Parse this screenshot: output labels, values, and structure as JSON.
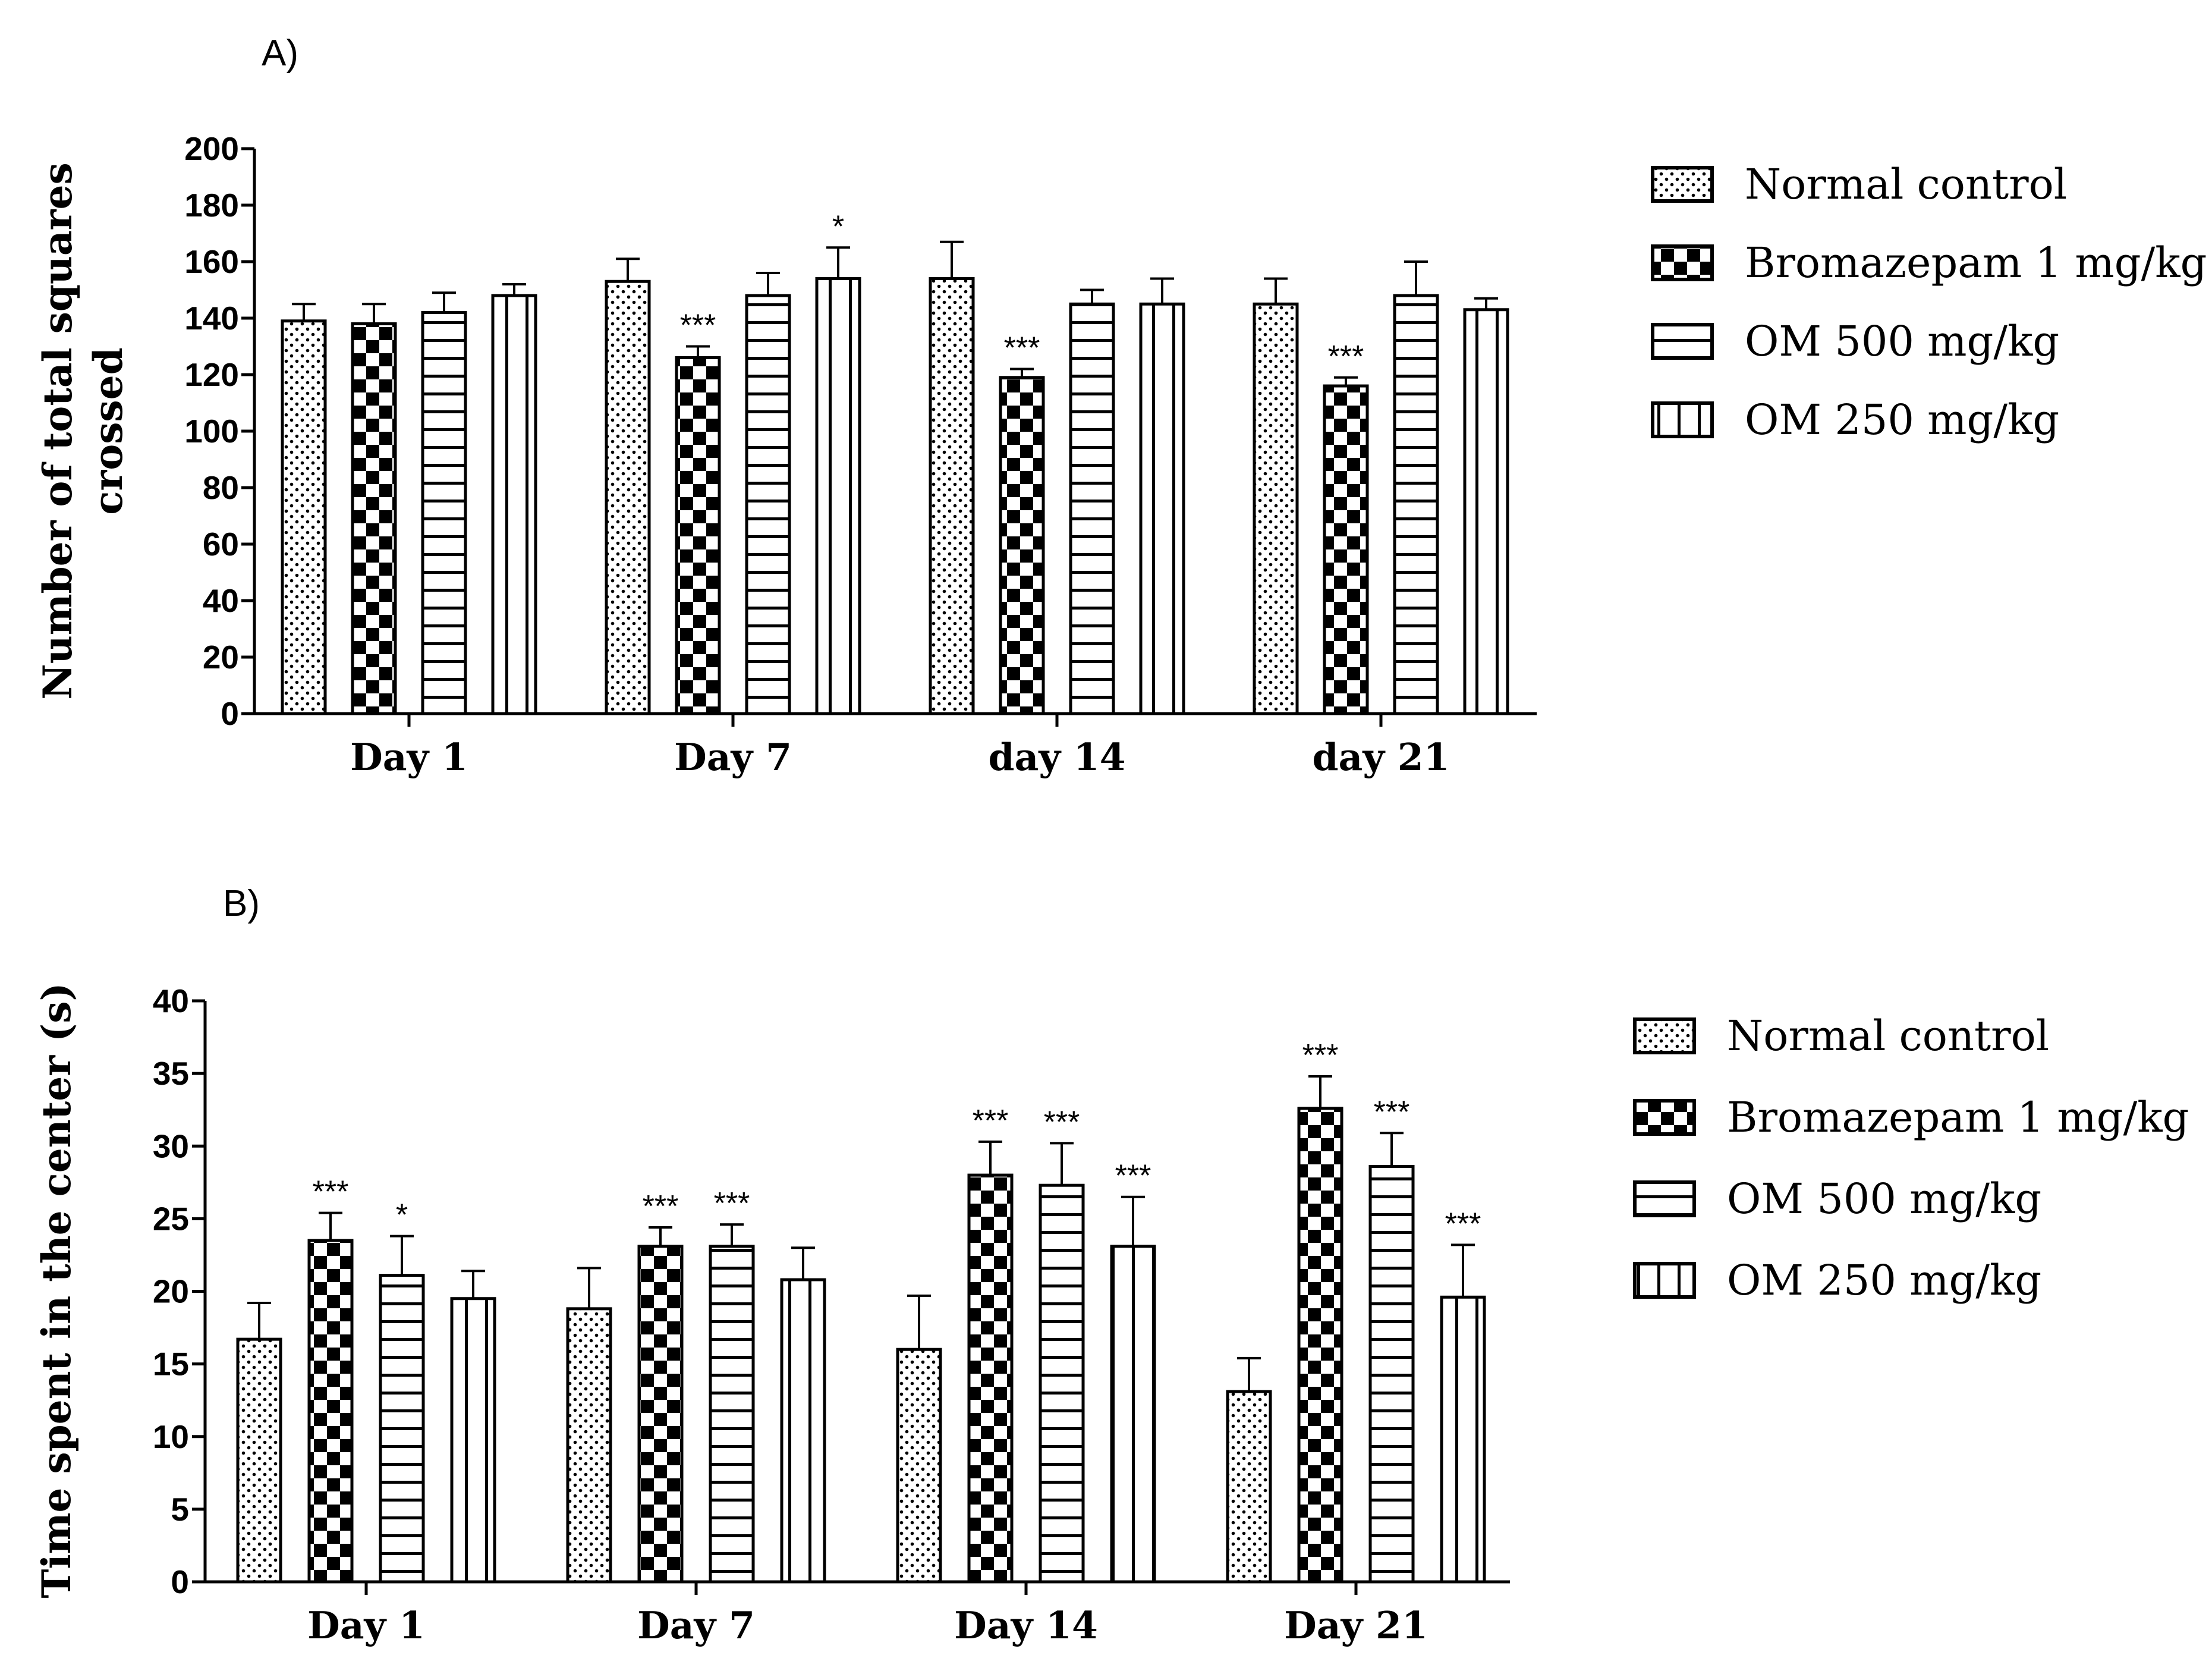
{
  "chart_data": [
    {
      "type": "bar",
      "panel_label": "A)",
      "title": "",
      "xlabel": "",
      "ylabel_lines": [
        "Number of total squares",
        "crossed"
      ],
      "ylim": [
        0,
        200
      ],
      "yticks": [
        0,
        20,
        40,
        60,
        80,
        100,
        120,
        140,
        160,
        180,
        200
      ],
      "grid": false,
      "legend_position": "right",
      "categories": [
        "Day 1",
        "Day 7",
        "day 14",
        "day 21"
      ],
      "series": [
        {
          "name": "Normal control",
          "pattern": "dots",
          "values": [
            139,
            153,
            154,
            145
          ],
          "errors": [
            6,
            8,
            13,
            9
          ],
          "sig": [
            "",
            "",
            "",
            ""
          ]
        },
        {
          "name": "Bromazepam 1 mg/kg",
          "pattern": "checker",
          "values": [
            138,
            126,
            119,
            116
          ],
          "errors": [
            7,
            4,
            3,
            3
          ],
          "sig": [
            "",
            "***",
            "***",
            "***"
          ]
        },
        {
          "name": "OM 500 mg/kg",
          "pattern": "hstripes",
          "values": [
            142,
            148,
            145,
            148
          ],
          "errors": [
            7,
            8,
            5,
            12
          ],
          "sig": [
            "",
            "",
            "",
            ""
          ]
        },
        {
          "name": "OM 250 mg/kg",
          "pattern": "vstripes",
          "values": [
            148,
            154,
            145,
            143
          ],
          "errors": [
            4,
            11,
            9,
            4
          ],
          "sig": [
            "",
            "*",
            "",
            ""
          ]
        }
      ]
    },
    {
      "type": "bar",
      "panel_label": "B)",
      "title": "",
      "xlabel": "",
      "ylabel_lines": [
        "Time spent in the center (s)"
      ],
      "ylim": [
        0,
        40
      ],
      "yticks": [
        0,
        5,
        10,
        15,
        20,
        25,
        30,
        35,
        40
      ],
      "grid": false,
      "legend_position": "right",
      "categories": [
        "Day 1",
        "Day 7",
        "Day 14",
        "Day 21"
      ],
      "series": [
        {
          "name": "Normal control",
          "pattern": "dots",
          "values": [
            16.7,
            18.8,
            16.0,
            13.1
          ],
          "errors": [
            2.5,
            2.8,
            3.7,
            2.3
          ],
          "sig": [
            "",
            "",
            "",
            ""
          ]
        },
        {
          "name": "Bromazepam 1 mg/kg",
          "pattern": "checker",
          "values": [
            23.5,
            23.1,
            28.0,
            32.6
          ],
          "errors": [
            1.9,
            1.3,
            2.3,
            2.2
          ],
          "sig": [
            "***",
            "***",
            "***",
            "***"
          ]
        },
        {
          "name": "OM 500 mg/kg",
          "pattern": "hstripes",
          "values": [
            21.1,
            23.1,
            27.3,
            28.6
          ],
          "errors": [
            2.7,
            1.5,
            2.9,
            2.3
          ],
          "sig": [
            "*",
            "***",
            "***",
            "***"
          ]
        },
        {
          "name": "OM 250 mg/kg",
          "pattern": "vstripes",
          "values": [
            19.5,
            20.8,
            23.1,
            19.6
          ],
          "errors": [
            1.9,
            2.2,
            3.4,
            3.6
          ],
          "sig": [
            "",
            "",
            "***",
            "***"
          ]
        }
      ]
    }
  ]
}
